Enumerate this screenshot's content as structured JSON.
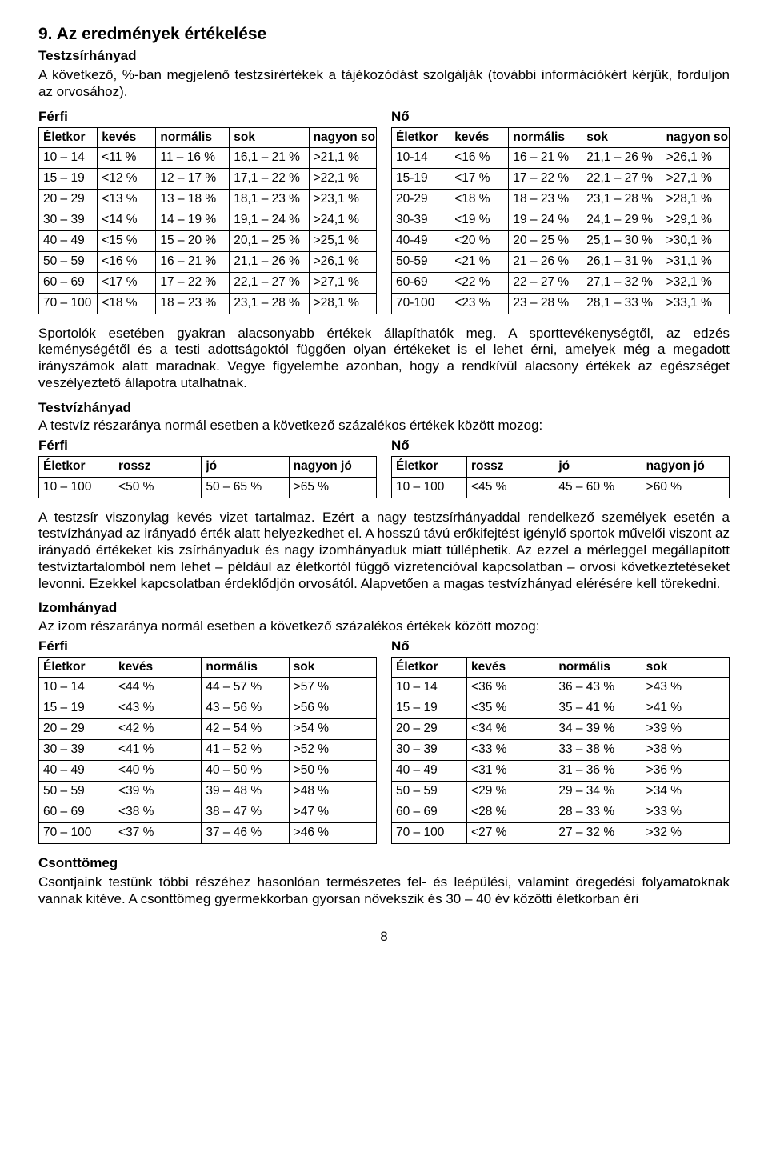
{
  "heading": "9. Az eredmények értékelése",
  "sec1": {
    "title": "Testzsírhányad",
    "intro": "A következő, %-ban megjelenő testzsírértékek a tájékozódást szolgálják (további információkért kérjük, forduljon az orvosához).",
    "male_label": "Férfi",
    "female_label": "Nő",
    "headers5": [
      "Életkor",
      "kevés",
      "normális",
      "sok",
      "nagyon sok"
    ],
    "male_rows": [
      [
        "10 – 14",
        "<11 %",
        "11 – 16 %",
        "16,1 – 21 %",
        ">21,1 %"
      ],
      [
        "15 – 19",
        "<12 %",
        "12 – 17 %",
        "17,1 – 22 %",
        ">22,1 %"
      ],
      [
        "20 – 29",
        "<13 %",
        "13 – 18 %",
        "18,1 – 23 %",
        ">23,1 %"
      ],
      [
        "30 – 39",
        "<14 %",
        "14 – 19 %",
        "19,1 – 24 %",
        ">24,1 %"
      ],
      [
        "40 – 49",
        "<15 %",
        "15 – 20 %",
        "20,1 – 25 %",
        ">25,1 %"
      ],
      [
        "50 – 59",
        "<16 %",
        "16 – 21 %",
        "21,1 – 26 %",
        ">26,1 %"
      ],
      [
        "60 – 69",
        "<17 %",
        "17 – 22 %",
        "22,1 – 27 %",
        ">27,1 %"
      ],
      [
        "70 – 100",
        "<18 %",
        "18 – 23 %",
        "23,1 – 28 %",
        ">28,1 %"
      ]
    ],
    "female_rows": [
      [
        "10-14",
        "<16 %",
        "16 – 21 %",
        "21,1 – 26 %",
        ">26,1 %"
      ],
      [
        "15-19",
        "<17 %",
        "17 – 22 %",
        "22,1 – 27 %",
        ">27,1 %"
      ],
      [
        "20-29",
        "<18 %",
        "18 – 23 %",
        "23,1 – 28 %",
        ">28,1 %"
      ],
      [
        "30-39",
        "<19 %",
        "19 – 24 %",
        "24,1 – 29 %",
        ">29,1 %"
      ],
      [
        "40-49",
        "<20 %",
        "20 – 25 %",
        "25,1 – 30 %",
        ">30,1 %"
      ],
      [
        "50-59",
        "<21 %",
        "21 – 26 %",
        "26,1 – 31 %",
        ">31,1 %"
      ],
      [
        "60-69",
        "<22 %",
        "22 – 27 %",
        "27,1 – 32 %",
        ">32,1 %"
      ],
      [
        "70-100",
        "<23 %",
        "23 – 28 %",
        "28,1 – 33 %",
        ">33,1 %"
      ]
    ],
    "para_after": "Sportolók esetében gyakran alacsonyabb értékek állapíthatók meg. A sporttevékenységtől, az edzés keménységétől és a testi adottságoktól függően olyan értékeket is el lehet érni, amelyek még a megadott irányszámok alatt maradnak. Vegye figyelembe azonban, hogy a rendkívül alacsony értékek az egészséget veszélyeztető állapotra utalhatnak."
  },
  "sec2": {
    "title": "Testvízhányad",
    "intro": "A testvíz részaránya normál esetben a következő százalékos értékek között mozog:",
    "male_label": "Férfi",
    "female_label": "Nő",
    "headers4": [
      "Életkor",
      "rossz",
      "jó",
      "nagyon jó"
    ],
    "male_rows": [
      [
        "10 – 100",
        "<50 %",
        "50 – 65 %",
        ">65 %"
      ]
    ],
    "female_rows": [
      [
        "10 – 100",
        "<45 %",
        "45 – 60 %",
        ">60 %"
      ]
    ],
    "para_after": "A testzsír viszonylag kevés vizet tartalmaz. Ezért a nagy testzsírhányaddal rendelkező személyek esetén a testvízhányad az irányadó érték alatt helyezkedhet el. A hosszú távú erőkifejtést igénylő sportok művelői viszont az irányadó értékeket kis zsírhányaduk és nagy izomhányaduk miatt túlléphetik. Az ezzel a mérleggel megállapított testvíztartalomból nem lehet – például az életkortól függő vízretencióval kapcsolatban – orvosi következtetéseket levonni. Ezekkel kapcsolatban érdeklődjön orvosától. Alapvetően a magas testvízhányad elérésére kell törekedni."
  },
  "sec3": {
    "title": "Izomhányad",
    "intro": "Az izom részaránya normál esetben a következő százalékos értékek között mozog:",
    "male_label": "Férfi",
    "female_label": "Nő",
    "headers4": [
      "Életkor",
      "kevés",
      "normális",
      "sok"
    ],
    "male_rows": [
      [
        "10 – 14",
        "<44 %",
        "44 – 57 %",
        ">57 %"
      ],
      [
        "15 – 19",
        "<43 %",
        "43 – 56 %",
        ">56 %"
      ],
      [
        "20 – 29",
        "<42 %",
        "42 – 54 %",
        ">54 %"
      ],
      [
        "30 – 39",
        "<41 %",
        "41 – 52 %",
        ">52 %"
      ],
      [
        "40 – 49",
        "<40 %",
        "40 – 50 %",
        ">50 %"
      ],
      [
        "50 – 59",
        "<39 %",
        "39 – 48 %",
        ">48 %"
      ],
      [
        "60 – 69",
        "<38 %",
        "38 – 47 %",
        ">47 %"
      ],
      [
        "70 – 100",
        "<37 %",
        "37 – 46 %",
        ">46 %"
      ]
    ],
    "female_rows": [
      [
        "10 – 14",
        "<36 %",
        "36 – 43 %",
        ">43 %"
      ],
      [
        "15 – 19",
        "<35 %",
        "35 – 41 %",
        ">41 %"
      ],
      [
        "20 – 29",
        "<34 %",
        "34 – 39 %",
        ">39 %"
      ],
      [
        "30 – 39",
        "<33 %",
        "33 – 38 %",
        ">38 %"
      ],
      [
        "40 – 49",
        "<31 %",
        "31 – 36 %",
        ">36 %"
      ],
      [
        "50 – 59",
        "<29 %",
        "29 – 34 %",
        ">34 %"
      ],
      [
        "60 – 69",
        "<28 %",
        "28 – 33 %",
        ">33 %"
      ],
      [
        "70 – 100",
        "<27 %",
        "27 – 32 %",
        ">32 %"
      ]
    ]
  },
  "sec4": {
    "title": "Csonttömeg",
    "para": "Csontjaink testünk többi részéhez hasonlóan természetes fel- és leépülési, valamint öregedési folyamatoknak vannak kitéve. A csonttömeg gyermekkorban gyorsan növekszik és 30 – 40 év közötti életkorban éri"
  },
  "page_num": "8"
}
